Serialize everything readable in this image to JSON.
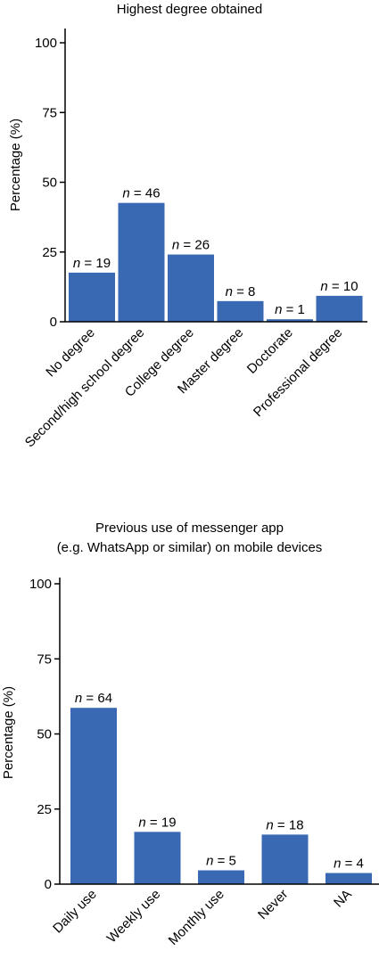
{
  "chart_data": [
    {
      "type": "bar",
      "title_lines": [
        "Highest degree obtained"
      ],
      "ylabel": "Percentage (%)",
      "xlabel": "",
      "ylim": [
        0,
        100
      ],
      "yticks": [
        0,
        25,
        50,
        75,
        100
      ],
      "bar_color": "#3a69b4",
      "categories": [
        "No degree",
        "Second/high school degree",
        "College degree",
        "Master degree",
        "Doctorate",
        "Professional degree"
      ],
      "values": [
        17.6,
        42.6,
        24.1,
        7.4,
        0.9,
        9.3
      ],
      "n_values": [
        19,
        46,
        26,
        8,
        1,
        10
      ],
      "n_prefix": "n",
      "n_sep": " = "
    },
    {
      "type": "bar",
      "title_lines": [
        "Previous use of messenger app",
        "(e.g. WhatsApp or similar) on mobile devices"
      ],
      "ylabel": "Percentage (%)",
      "xlabel": "",
      "ylim": [
        0,
        100
      ],
      "yticks": [
        0,
        25,
        50,
        75,
        100
      ],
      "bar_color": "#3a69b4",
      "categories": [
        "Daily use",
        "Weekly use",
        "Monthly use",
        "Never",
        "NA"
      ],
      "values": [
        58.7,
        17.4,
        4.6,
        16.5,
        3.7
      ],
      "n_values": [
        64,
        19,
        5,
        18,
        4
      ],
      "n_prefix": "n",
      "n_sep": " = "
    }
  ]
}
